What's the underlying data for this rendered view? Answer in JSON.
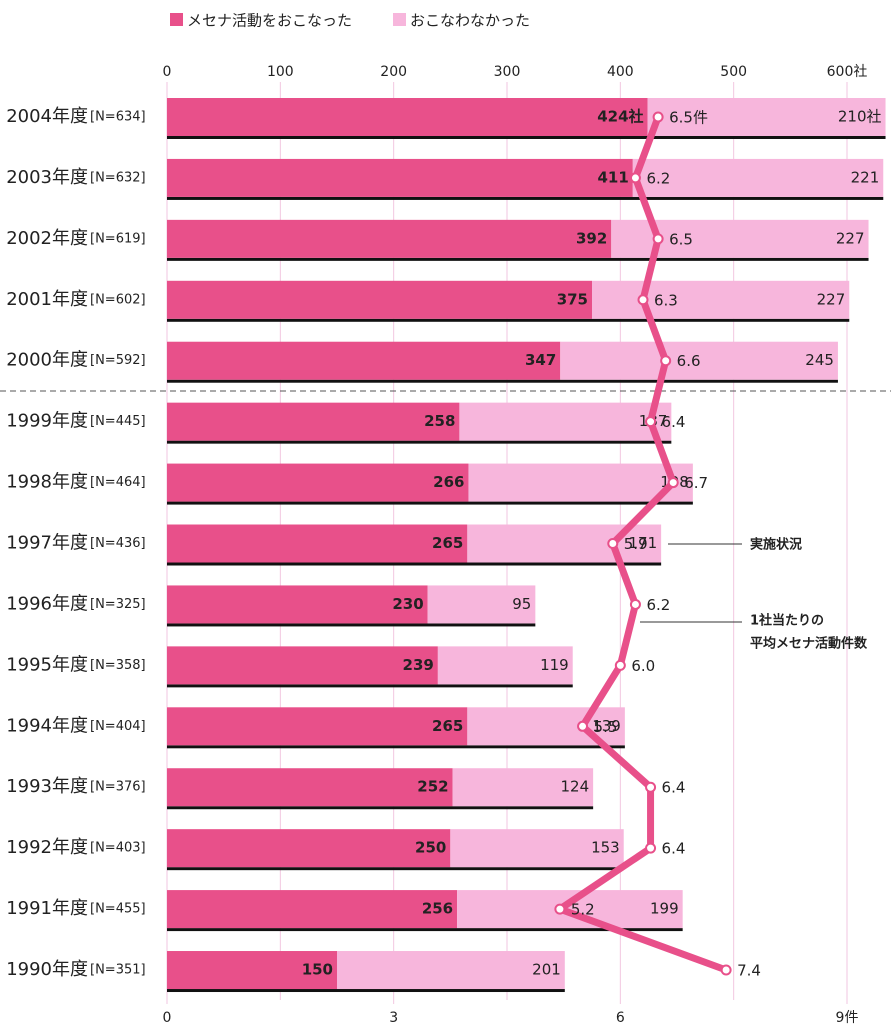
{
  "chart_data": {
    "type": "stacked-bar-line",
    "categories": [
      "2004年度",
      "2003年度",
      "2002年度",
      "2001年度",
      "2000年度",
      "1999年度",
      "1998年度",
      "1997年度",
      "1996年度",
      "1995年度",
      "1994年度",
      "1993年度",
      "1992年度",
      "1991年度",
      "1990年度"
    ],
    "n_labels": [
      "[N=634]",
      "[N=632]",
      "[N=619]",
      "[N=602]",
      "[N=592]",
      "[N=445]",
      "[N=464]",
      "[N=436]",
      "[N=325]",
      "[N=358]",
      "[N=404]",
      "[N=376]",
      "[N=403]",
      "[N=455]",
      "[N=351]"
    ],
    "series": [
      {
        "name": "メセナ活動をおこなった",
        "color": "#e8508a",
        "values": [
          424,
          411,
          392,
          375,
          347,
          258,
          266,
          265,
          230,
          239,
          265,
          252,
          250,
          256,
          150
        ],
        "value_labels": [
          "424社",
          "411",
          "392",
          "375",
          "347",
          "258",
          "266",
          "265",
          "230",
          "239",
          "265",
          "252",
          "250",
          "256",
          "150"
        ]
      },
      {
        "name": "おこなわなかった",
        "color": "#f7b6dc",
        "values": [
          210,
          221,
          227,
          227,
          245,
          187,
          198,
          171,
          95,
          119,
          139,
          124,
          153,
          199,
          201
        ],
        "value_labels": [
          "210社",
          "221",
          "227",
          "227",
          "245",
          "187",
          "198",
          "171",
          "95",
          "119",
          "139",
          "124",
          "153",
          "199",
          "201"
        ]
      },
      {
        "axis": "x2",
        "color": "#e8508a",
        "values": [
          6.5,
          6.2,
          6.5,
          6.3,
          6.6,
          6.4,
          6.7,
          5.9,
          6.2,
          6.0,
          5.5,
          6.4,
          6.4,
          5.2,
          7.4
        ],
        "value_labels": [
          "6.5件",
          "6.2",
          "6.5",
          "6.3",
          "6.6",
          "6.4",
          "6.7",
          "5.9",
          "6.2",
          "6.0",
          "5.5",
          "6.4",
          "6.4",
          "5.2",
          "7.4"
        ]
      }
    ],
    "xlim": [
      0,
      600
    ],
    "xticks": [
      0,
      100,
      200,
      300,
      400,
      500,
      {
        "value": 600,
        "label": "600社"
      }
    ],
    "x2lim": [
      0,
      9
    ],
    "x2ticks": [
      0,
      3,
      6,
      {
        "value": 9,
        "label": "9件"
      }
    ],
    "annotations": [
      "実施状況",
      "1社当たりの",
      "平均メセナ活動件数"
    ],
    "grid": true
  }
}
